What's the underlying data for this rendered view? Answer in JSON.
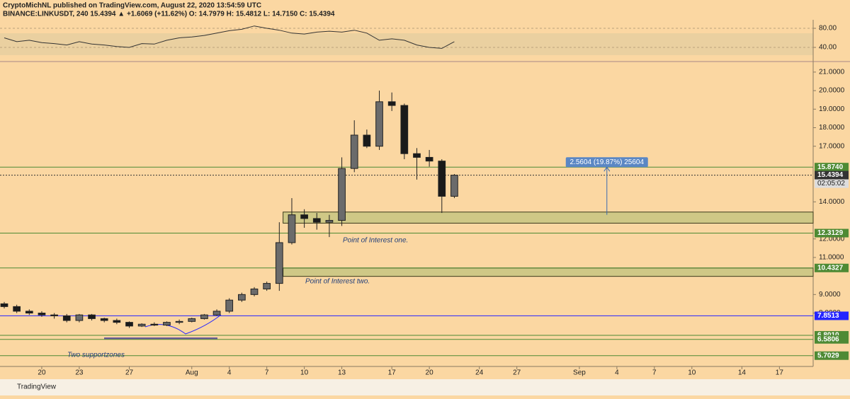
{
  "header": {
    "line1": "CryptoMichNL published on TradingView.com, August 22, 2020 13:54:59 UTC",
    "line2": "BINANCE:LINKUSDT, 240  15.4394 ▲ +1.6069 (+11.62%) O: 14.7979 H: 15.4812 L: 14.7150 C: 15.4394"
  },
  "chart_data": [
    {
      "type": "candlestick",
      "x": [
        -3,
        -2,
        -1,
        0,
        1,
        2,
        3,
        4,
        5,
        6,
        7,
        8,
        9,
        10,
        11,
        12,
        13,
        14,
        15,
        16,
        17,
        18,
        19,
        20,
        21,
        22,
        23,
        24,
        25,
        26,
        27,
        28,
        29,
        30,
        31,
        32,
        33
      ],
      "open": [
        8.5,
        8.35,
        8.1,
        8.0,
        7.9,
        7.85,
        7.6,
        7.9,
        7.7,
        7.6,
        7.5,
        7.3,
        7.4,
        7.35,
        7.5,
        7.55,
        7.7,
        7.9,
        8.1,
        8.7,
        9.0,
        9.3,
        9.6,
        11.8,
        13.3,
        13.1,
        12.9,
        13.0,
        15.8,
        17.6,
        17.0,
        19.4,
        19.2,
        16.6,
        16.4,
        16.2,
        14.3
      ],
      "high": [
        8.6,
        8.45,
        8.2,
        8.1,
        8.0,
        7.95,
        7.95,
        7.95,
        7.75,
        7.7,
        7.55,
        7.45,
        7.5,
        7.55,
        7.65,
        7.75,
        7.95,
        8.2,
        8.8,
        9.1,
        9.4,
        9.7,
        12.9,
        14.2,
        13.6,
        13.4,
        13.3,
        16.4,
        18.4,
        17.9,
        20.0,
        19.9,
        19.3,
        16.9,
        16.8,
        16.3,
        15.5
      ],
      "low": [
        8.25,
        8.0,
        7.9,
        7.8,
        7.7,
        7.5,
        7.5,
        7.6,
        7.5,
        7.4,
        7.2,
        7.25,
        7.3,
        7.3,
        7.4,
        7.5,
        7.65,
        7.85,
        8.0,
        8.6,
        8.9,
        9.2,
        9.2,
        11.7,
        12.6,
        12.5,
        12.1,
        12.7,
        15.6,
        16.9,
        16.8,
        18.9,
        16.3,
        15.2,
        15.9,
        13.4,
        14.2
      ],
      "close": [
        8.35,
        8.1,
        8.0,
        7.9,
        7.85,
        7.6,
        7.9,
        7.7,
        7.6,
        7.5,
        7.3,
        7.4,
        7.35,
        7.5,
        7.55,
        7.7,
        7.9,
        8.1,
        8.7,
        9.0,
        9.3,
        9.6,
        11.8,
        13.3,
        13.1,
        12.9,
        13.0,
        15.8,
        17.6,
        17.0,
        19.4,
        19.2,
        16.6,
        16.4,
        16.2,
        14.3,
        15.44
      ],
      "up_color": "#6b6b6b",
      "down_color": "#1a1a1a",
      "xlim": [
        -3.34,
        61.7
      ],
      "ylim": [
        5.12,
        21.53
      ],
      "xticks": [
        {
          "value": 0,
          "label": "20"
        },
        {
          "value": 3,
          "label": "23"
        },
        {
          "value": 7,
          "label": "27"
        },
        {
          "value": 12,
          "label": "Aug"
        },
        {
          "value": 15,
          "label": "4"
        },
        {
          "value": 18,
          "label": "7"
        },
        {
          "value": 21,
          "label": "10"
        },
        {
          "value": 24,
          "label": "13"
        },
        {
          "value": 28,
          "label": "17"
        },
        {
          "value": 31,
          "label": "20"
        },
        {
          "value": 35,
          "label": "24"
        },
        {
          "value": 38,
          "label": "27"
        },
        {
          "value": 43,
          "label": "Sep"
        },
        {
          "value": 46,
          "label": "4"
        },
        {
          "value": 49,
          "label": "7"
        },
        {
          "value": 52,
          "label": "10"
        },
        {
          "value": 56,
          "label": "14"
        },
        {
          "value": 59,
          "label": "17"
        }
      ],
      "yticks": [
        {
          "value": 8,
          "label": "8.0000"
        },
        {
          "value": 9,
          "label": "9.0000"
        },
        {
          "value": 11,
          "label": "11.0000"
        },
        {
          "value": 12,
          "label": "12.0000"
        },
        {
          "value": 14,
          "label": "14.0000"
        },
        {
          "value": 17,
          "label": "17.0000"
        },
        {
          "value": 18,
          "label": "18.0000"
        },
        {
          "value": 19,
          "label": "19.0000"
        },
        {
          "value": 20,
          "label": "20.0000"
        },
        {
          "value": 21,
          "label": "21.0000"
        }
      ],
      "levels": [
        {
          "value": 15.874,
          "label": "15.8740",
          "color": "#4e8a34"
        },
        {
          "value": 15.4394,
          "label": "15.4394",
          "color": "#333333",
          "dashed": true
        },
        {
          "value": 12.3129,
          "label": "12.3129",
          "color": "#4e8a34"
        },
        {
          "value": 10.4327,
          "label": "10.4327",
          "color": "#4e8a34"
        },
        {
          "value": 7.8513,
          "label": "7.8513",
          "color": "#2424ff"
        },
        {
          "value": 6.801,
          "label": "6.8010",
          "color": "#4e8a34"
        },
        {
          "value": 6.5806,
          "label": "6.5806",
          "color": "#4e8a34"
        },
        {
          "value": 5.7029,
          "label": "5.7029",
          "color": "#4e8a34"
        }
      ],
      "countdown": "02:05:02",
      "zones": [
        {
          "top": 13.45,
          "bottom": 12.85,
          "start": 19.3
        },
        {
          "top": 10.43,
          "bottom": 9.98,
          "start": 19.3
        }
      ],
      "zone_color": "#cfc886",
      "measure": {
        "label": "2.5604 (19.87%) 25604",
        "x": 45.2,
        "from": 13.3,
        "to": 15.874
      },
      "annotations": [
        "Point of Interest one.",
        "Point of Interest two.",
        "Two supportzones"
      ]
    },
    {
      "type": "line",
      "name": "RSI",
      "color": "#333333",
      "x": [
        -3,
        -2,
        -1,
        0,
        1,
        2,
        3,
        4,
        5,
        6,
        7,
        8,
        9,
        10,
        11,
        12,
        13,
        14,
        15,
        16,
        17,
        18,
        19,
        20,
        21,
        22,
        23,
        24,
        25,
        26,
        27,
        28,
        29,
        30,
        31,
        32,
        33
      ],
      "values": [
        60,
        52,
        55,
        50,
        48,
        45,
        52,
        47,
        45,
        42,
        40,
        48,
        47,
        55,
        60,
        62,
        65,
        70,
        75,
        78,
        85,
        80,
        76,
        70,
        68,
        72,
        74,
        72,
        76,
        70,
        55,
        58,
        55,
        45,
        40,
        38,
        52
      ],
      "xlim": [
        -3.34,
        61.7
      ],
      "ylim": [
        14.8,
        91.9
      ],
      "yticks": [
        {
          "value": 40,
          "label": "40.00"
        },
        {
          "value": 80,
          "label": "80.00"
        }
      ]
    }
  ],
  "footer": {
    "brand": "TradingView"
  }
}
